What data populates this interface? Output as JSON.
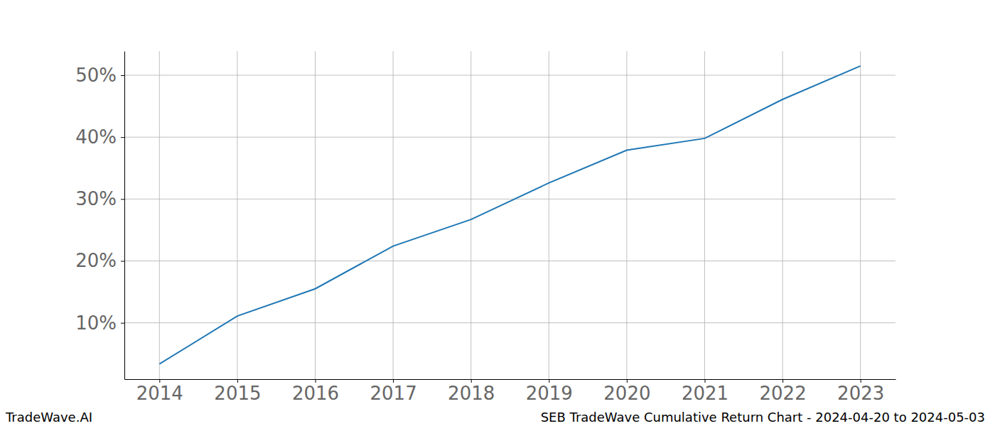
{
  "chart_data": {
    "type": "line",
    "title": "SEB TradeWave Cumulative Return Chart - 2024-04-20 to 2024-05-03",
    "annotations": [
      "TradeWave.AI"
    ],
    "x": [
      2014,
      2015,
      2016,
      2017,
      2018,
      2019,
      2020,
      2021,
      2022,
      2023
    ],
    "values": [
      3.35,
      11.1,
      15.5,
      22.4,
      26.7,
      32.6,
      37.9,
      39.8,
      46.1,
      51.5
    ],
    "color": "#1f77b4",
    "xlim": [
      2013.55,
      2023.45
    ],
    "xticks": [
      2014,
      2015,
      2016,
      2017,
      2018,
      2019,
      2020,
      2021,
      2022,
      2023
    ],
    "ylim": [
      0.9,
      53.9
    ],
    "yticks": [
      {
        "value": 10,
        "label": "10%"
      },
      {
        "value": 20,
        "label": "20%"
      },
      {
        "value": 30,
        "label": "30%"
      },
      {
        "value": 40,
        "label": "40%"
      },
      {
        "value": 50,
        "label": "50%"
      }
    ],
    "grid": true
  }
}
